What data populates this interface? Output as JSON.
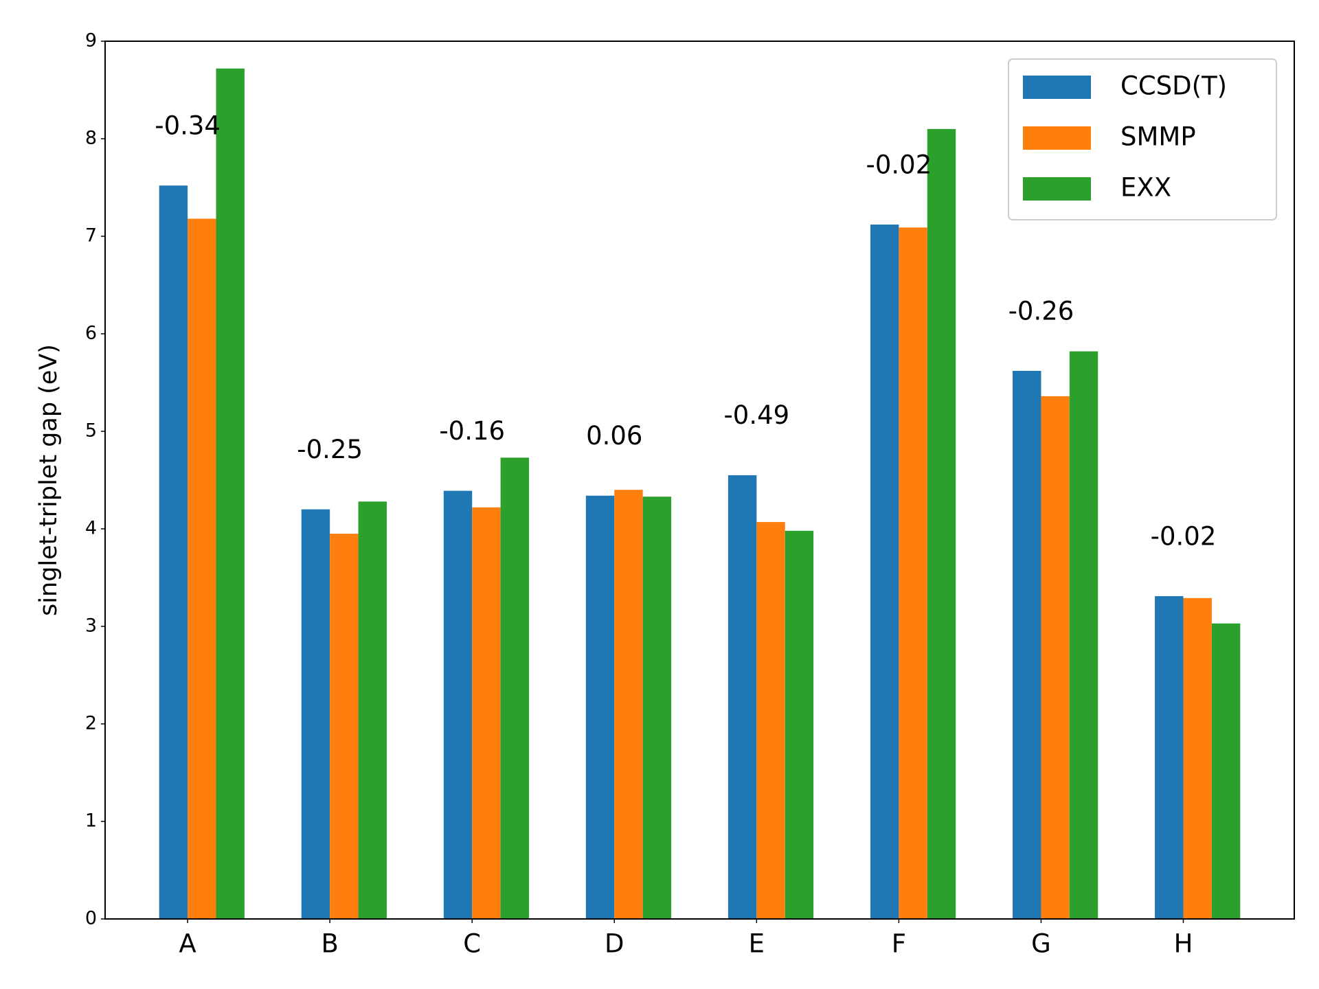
{
  "chart_data": {
    "type": "bar",
    "y_label": "singlet-triplet gap (eV)",
    "categories": [
      "A",
      "B",
      "C",
      "D",
      "E",
      "F",
      "G",
      "H"
    ],
    "series": [
      {
        "name": "CCSD(T)",
        "color": "#1f77b4",
        "values": [
          7.52,
          4.2,
          4.39,
          4.34,
          4.55,
          7.12,
          5.62,
          3.31
        ]
      },
      {
        "name": "SMMP",
        "color": "#ff7f0e",
        "values": [
          7.18,
          3.95,
          4.22,
          4.4,
          4.07,
          7.09,
          5.36,
          3.29
        ]
      },
      {
        "name": "EXX",
        "color": "#2ca02c",
        "values": [
          8.72,
          4.28,
          4.73,
          4.33,
          3.98,
          8.1,
          5.82,
          3.03
        ]
      }
    ],
    "annotations": [
      "-0.34",
      "-0.25",
      "-0.16",
      "0.06",
      "-0.49",
      "-0.02",
      "-0.26",
      "-0.02"
    ],
    "ylim": [
      0,
      9
    ],
    "yticks": [
      0,
      1,
      2,
      3,
      4,
      5,
      6,
      7,
      8,
      9
    ],
    "legend": "upper right"
  }
}
